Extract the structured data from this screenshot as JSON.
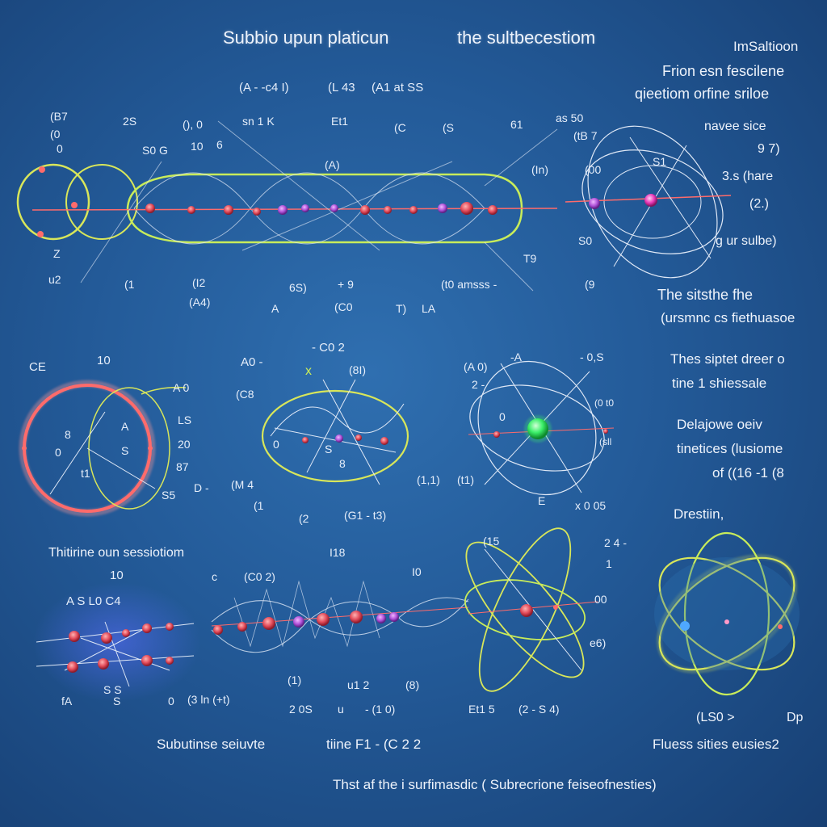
{
  "header": {
    "title_left": "Subbio upun platicun",
    "title_right": "the sultbecestiom",
    "formula_row": [
      "(A - -c4 I)",
      "(L 43",
      "(A1 at SS"
    ]
  },
  "sidebar": {
    "top_title": "ImSaltioon",
    "top_lines": [
      "Frion esn fescilene",
      "qieetiom orfine sriloe"
    ],
    "block1": [
      "navee sice",
      "9  7)",
      "3.s (hare",
      "(2.)",
      "g ur sulbe)"
    ],
    "block2": [
      "The sitsthe fhe",
      "(ursmnc cs fiethuasoe"
    ],
    "block3": [
      "Thes siptet  dreer o",
      "tine 1  shiessale"
    ],
    "block4": [
      "Delajowe oeiv",
      "tinetices  (lusiome",
      "of  ((16 -1  (8"
    ],
    "block5_title": "Drestiin,",
    "block5_footer": [
      "(LS0 >",
      "Dp"
    ],
    "footer": "Fluess sities  eusies2"
  },
  "panels": {
    "top_chain": {
      "labels": [
        "(B7",
        "(0",
        "0",
        "2S",
        "(), 0",
        "S0 G",
        "10",
        "6",
        "sn  1  K",
        "Et1",
        "(C",
        "(S",
        "61",
        "as 50",
        "(tB 7",
        "(A)",
        "(In)",
        "(00",
        "S0",
        "Z",
        "u2",
        "(1",
        "(I2",
        "(A4)",
        "A",
        "6S)",
        "+ 9",
        "(C0",
        "T)",
        "LA",
        "(t0  amsss -",
        "(9",
        "T9",
        "S1"
      ]
    },
    "ring_left": {
      "labels": [
        "CE",
        "10",
        "A 0",
        "8",
        "A",
        "0",
        "S",
        "t1",
        "LS",
        "20",
        "87",
        "S5",
        "D  -",
        "(M 4"
      ]
    },
    "ellipse_mid": {
      "labels": [
        "A0 -",
        "- C0 2",
        "(8I)",
        "(C8",
        "0",
        "S",
        "8",
        "(1",
        "(2",
        "(G1 - t3)",
        "(1,1)"
      ]
    },
    "atom_mid": {
      "labels": [
        "(A 0)",
        "-A",
        "- 0,S",
        "2 -",
        "0",
        "(0 t0",
        "(sll",
        "(t1)",
        "E",
        "x 0  05"
      ]
    },
    "bottom_left": {
      "title": "Thitirine oun sessiotiom",
      "labels": [
        "10",
        "A S  L0  C4",
        "S  S",
        "fA",
        "S",
        "0"
      ]
    },
    "bottom_chain": {
      "labels": [
        "I18",
        "(C0 2)",
        "c",
        "I0",
        "(1)",
        "u1 2",
        "(8)",
        "(3 ln  (+t)",
        "2 0S",
        "u",
        "- (1 0)"
      ]
    },
    "bottom_atom": {
      "labels": [
        "(15",
        "2 4 -",
        "1",
        "00",
        "e6)",
        "Et1 5",
        "(2 - S 4)"
      ]
    }
  },
  "footer": {
    "line1": "Subutinse seiuvte",
    "line1_mid": "tiine F1 -  (C 2 2",
    "line2": "Thst af the  i surfimasdic  ( Subrecrione feiseofnesties)"
  },
  "colors": {
    "background": "#235a98",
    "orbit_yellow": "#d8e65a",
    "orbit_green": "#b8ec58",
    "ring_red": "#ff6b6b",
    "particle_red": "#e24b5a",
    "particle_purple": "#b052d8",
    "particle_green": "#3cf06a",
    "particle_magenta": "#e838b8",
    "line_white": "#dfe8f6"
  }
}
